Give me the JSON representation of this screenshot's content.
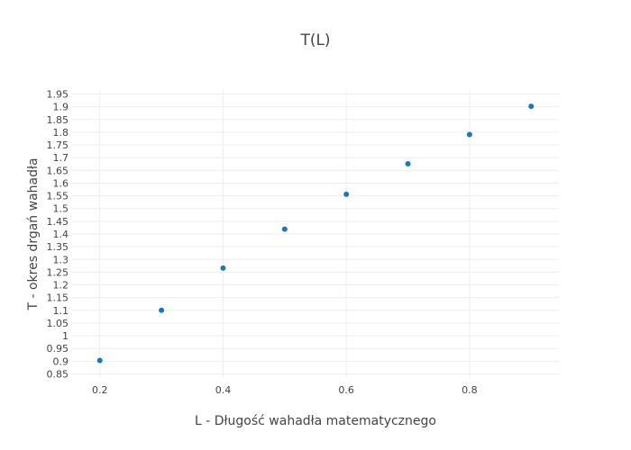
{
  "chart_data": {
    "type": "scatter",
    "title": "T(L)",
    "xlabel": "L - Długość wahadła matematycznego",
    "ylabel": "T - okres drgań wahadła",
    "xlim": [
      0.155,
      0.945
    ],
    "ylim": [
      0.834,
      1.966
    ],
    "x_ticks": [
      0.2,
      0.4,
      0.6,
      0.8
    ],
    "x_tick_labels": [
      "0.2",
      "0.4",
      "0.6",
      "0.8"
    ],
    "y_ticks": [
      0.85,
      0.9,
      0.95,
      1,
      1.05,
      1.1,
      1.15,
      1.2,
      1.25,
      1.3,
      1.35,
      1.4,
      1.45,
      1.5,
      1.55,
      1.6,
      1.65,
      1.7,
      1.75,
      1.8,
      1.85,
      1.9,
      1.95
    ],
    "y_tick_labels": [
      "0.85",
      "0.9",
      "0.95",
      "1",
      "1.05",
      "1.1",
      "1.15",
      "1.2",
      "1.25",
      "1.3",
      "1.35",
      "1.4",
      "1.45",
      "1.5",
      "1.55",
      "1.6",
      "1.65",
      "1.7",
      "1.75",
      "1.8",
      "1.85",
      "1.9",
      "1.95"
    ],
    "grid": true,
    "marker_color": "#1f77b4",
    "series": [
      {
        "x": [
          0.2,
          0.3,
          0.4,
          0.5,
          0.6,
          0.7,
          0.8,
          0.9
        ],
        "y": [
          0.903,
          1.1,
          1.266,
          1.419,
          1.556,
          1.676,
          1.791,
          1.902
        ]
      }
    ]
  }
}
